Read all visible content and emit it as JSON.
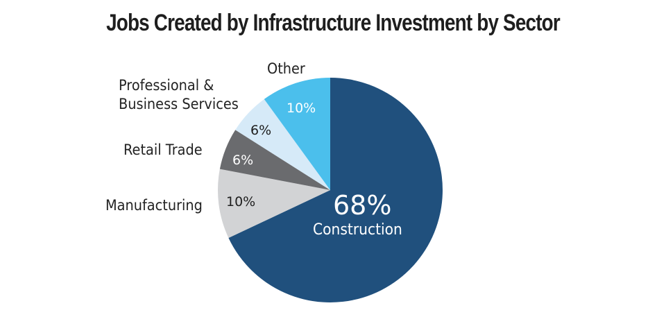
{
  "chart_data": {
    "type": "pie",
    "title": "Jobs Created by Infrastructure Investment by Sector",
    "categories": [
      "Construction",
      "Manufacturing",
      "Retail Trade",
      "Professional & Business Services",
      "Other"
    ],
    "values": [
      68,
      10,
      6,
      6,
      10
    ],
    "unit": "%",
    "labels": [
      "68%",
      "10%",
      "6%",
      "6%",
      "10%"
    ],
    "colors": [
      "#20507d",
      "#d2d3d5",
      "#6a6b6e",
      "#d6eaf8",
      "#4bbfec"
    ],
    "start_angle": "12 o'clock",
    "direction": "clockwise",
    "legend": "none (direct labels)"
  },
  "labels": {
    "other": "Other",
    "professional_line1": "Professional &",
    "professional_line2": "Business Services",
    "retail": "Retail Trade",
    "manufacturing": "Manufacturing",
    "construction": "Construction"
  },
  "percents": {
    "construction": "68%",
    "manufacturing": "10%",
    "retail": "6%",
    "professional": "6%",
    "other": "10%"
  }
}
